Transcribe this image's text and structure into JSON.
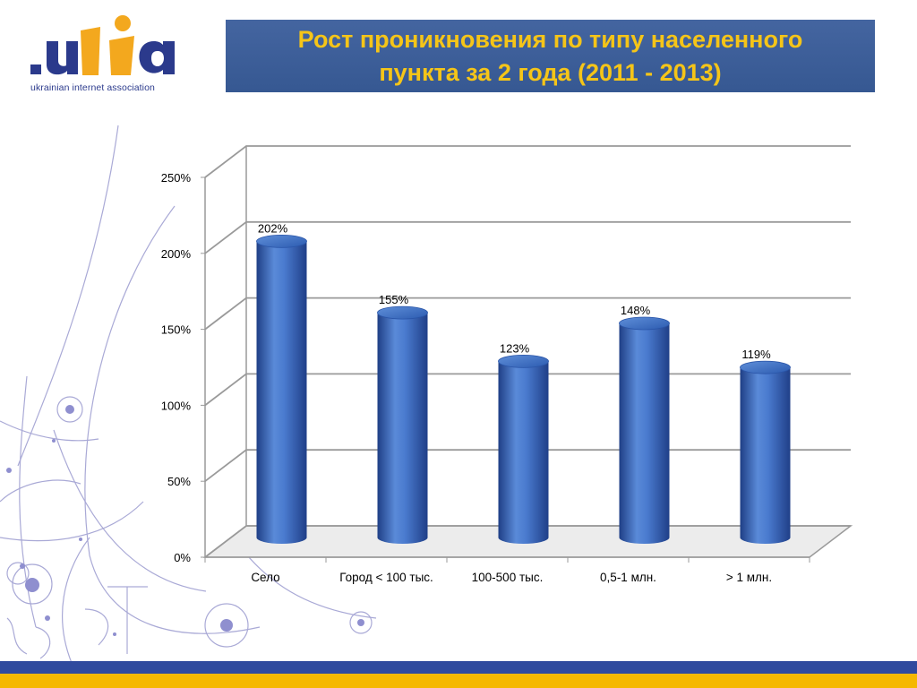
{
  "logo": {
    "mark": ".uia",
    "subtitle": "ukrainian internet association"
  },
  "title": "Рост проникновения по типу населенного пункта за 2 года (2011 - 2013)",
  "colors": {
    "title_bg": "#3a5c96",
    "title_text": "#f5c518",
    "bar": "#3c6cc0",
    "bar_dark": "#1f3f86",
    "bar_light": "#7fa6e6",
    "footer_blue": "#2f4a9e",
    "footer_gold": "#f5b800",
    "logo_blue": "#2b3a8c",
    "logo_gold": "#f3a81e"
  },
  "chart_data": {
    "type": "bar",
    "style": "3d-cylinder",
    "categories": [
      "Село",
      "Город < 100 тыс.",
      "100-500 тыс.",
      "0,5-1 млн.",
      "> 1 млн."
    ],
    "values": [
      202,
      155,
      123,
      148,
      119
    ],
    "value_labels": [
      "202%",
      "155%",
      "123%",
      "148%",
      "119%"
    ],
    "ylim": [
      0,
      250
    ],
    "yticks": [
      0,
      50,
      100,
      150,
      200,
      250
    ],
    "ytick_labels": [
      "0%",
      "50%",
      "100%",
      "150%",
      "200%",
      "250%"
    ],
    "grid": true,
    "legend": false
  }
}
